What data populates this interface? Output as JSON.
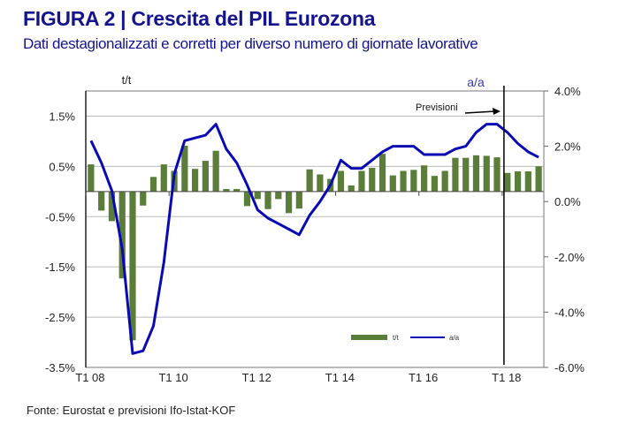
{
  "title": "FIGURA 2 | Crescita del PIL Eurozona",
  "subtitle": "Dati destagionalizzati e corretti per diverso numero di giornate lavorative",
  "source": "Fonte: Eurostat e previsioni Ifo-Istat-KOF",
  "colors": {
    "bars": "#5b7d3a",
    "line": "#0a0ab4",
    "title": "#14148c",
    "grid": "#bbbbbb"
  },
  "chart_data": {
    "type": "bar",
    "title": "Crescita del PIL Eurozona",
    "left_axis_label": "t/t",
    "right_axis_label": "a/a",
    "left_ylim": [
      -3.5,
      2.0
    ],
    "right_ylim": [
      -6.0,
      4.0
    ],
    "left_ticks": [
      "1.5%",
      "0.5%",
      "-0.5%",
      "-1.5%",
      "-2.5%",
      "-3.5%"
    ],
    "left_tick_values": [
      1.5,
      0.5,
      -0.5,
      -1.5,
      -2.5,
      -3.5
    ],
    "right_ticks": [
      "4.0%",
      "2.0%",
      "0.0%",
      "-2.0%",
      "-4.0%",
      "-6.0%"
    ],
    "right_tick_values": [
      4,
      2,
      0,
      -2,
      -4,
      -6
    ],
    "x_tick_labels": [
      "T1 08",
      "T1 10",
      "T1 12",
      "T1 14",
      "T1 16",
      "T1 18"
    ],
    "x_tick_index": [
      0,
      8,
      16,
      24,
      32,
      40
    ],
    "annotation": "Previsioni",
    "forecast_start_index": 40,
    "legend": {
      "position": "bottom-right",
      "items": [
        "t/t",
        "a/a"
      ]
    },
    "series": [
      {
        "name": "t/t",
        "type": "bar",
        "axis": "left",
        "values": [
          0.54,
          -0.38,
          -0.59,
          -1.73,
          -2.96,
          -0.28,
          0.29,
          0.54,
          0.41,
          0.91,
          0.45,
          0.61,
          0.81,
          0.05,
          0.05,
          -0.29,
          -0.15,
          -0.35,
          -0.15,
          -0.43,
          -0.34,
          0.44,
          0.34,
          0.25,
          0.41,
          0.12,
          0.41,
          0.47,
          0.75,
          0.32,
          0.41,
          0.43,
          0.52,
          0.31,
          0.41,
          0.67,
          0.67,
          0.72,
          0.71,
          0.68,
          0.37,
          0.4,
          0.4,
          0.5
        ]
      },
      {
        "name": "a/a",
        "type": "line",
        "axis": "right",
        "values": [
          2.2,
          1.4,
          0.4,
          -1.7,
          -5.5,
          -5.4,
          -4.5,
          -2.2,
          1.0,
          2.2,
          2.3,
          2.4,
          2.8,
          1.9,
          1.4,
          0.6,
          -0.3,
          -0.6,
          -0.8,
          -1.0,
          -1.2,
          -0.5,
          0.0,
          0.6,
          1.5,
          1.2,
          1.2,
          1.5,
          1.8,
          2.0,
          2.0,
          2.0,
          1.7,
          1.7,
          1.7,
          1.9,
          2.0,
          2.5,
          2.8,
          2.8,
          2.5,
          2.1,
          1.8,
          1.6
        ]
      }
    ]
  }
}
